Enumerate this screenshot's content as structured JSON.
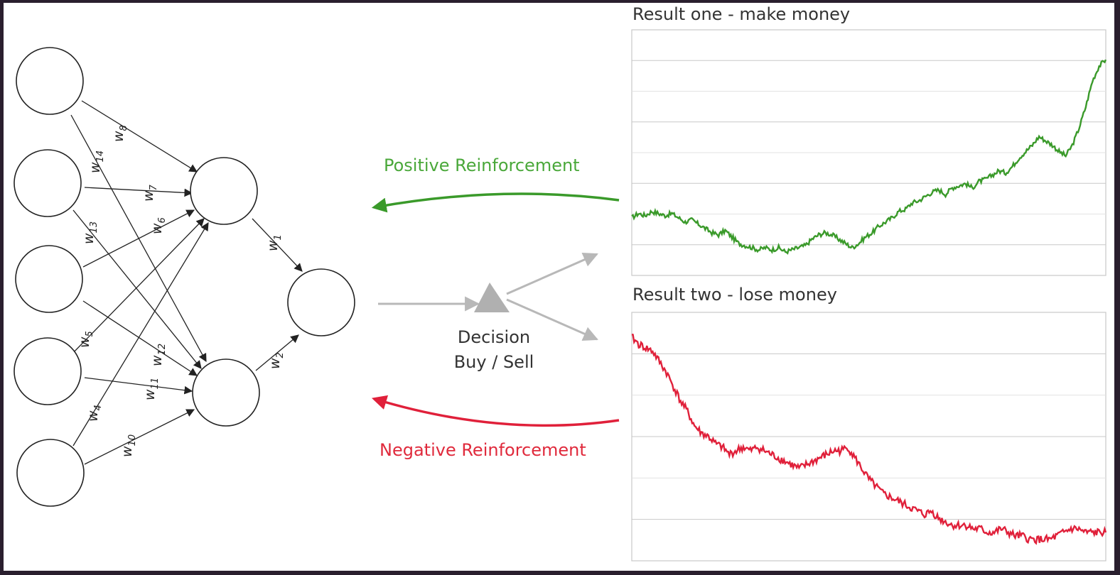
{
  "labels": {
    "decision_line1": "Decision",
    "decision_line2": "Buy / Sell",
    "positive": "Positive Reinforcement",
    "negative": "Negative Reinforcement"
  },
  "weights": [
    {
      "base": "w",
      "sub": "1"
    },
    {
      "base": "w",
      "sub": "2"
    },
    {
      "base": "w",
      "sub": "4"
    },
    {
      "base": "w",
      "sub": "5"
    },
    {
      "base": "w",
      "sub": "6"
    },
    {
      "base": "w",
      "sub": "7"
    },
    {
      "base": "w",
      "sub": "8"
    },
    {
      "base": "w",
      "sub": "10"
    },
    {
      "base": "w",
      "sub": "11"
    },
    {
      "base": "w",
      "sub": "12"
    },
    {
      "base": "w",
      "sub": "13"
    },
    {
      "base": "w",
      "sub": "14"
    }
  ],
  "colors": {
    "positive": "#3a9a2a",
    "negative": "#e0203a",
    "decision_gray": "#b8b8b8"
  },
  "chart_data": [
    {
      "type": "line",
      "title": "Result one - make money",
      "series": [
        {
          "values": [
            62,
            64,
            63,
            65,
            64,
            63,
            64,
            62,
            60,
            61,
            59,
            57,
            55,
            54,
            56,
            53,
            50,
            49,
            48,
            47,
            48,
            47,
            48,
            46,
            47,
            48,
            49,
            52,
            54,
            55,
            54,
            52,
            50,
            48,
            50,
            53,
            55,
            58,
            60,
            62,
            65,
            66,
            69,
            70,
            72,
            74,
            75,
            73,
            76,
            77,
            78,
            76,
            79,
            80,
            82,
            84,
            83,
            86,
            90,
            93,
            96,
            100,
            98,
            96,
            93,
            91,
            96,
            104,
            114,
            126,
            133,
            136
          ]
        }
      ],
      "ylim": [
        35,
        150
      ]
    },
    {
      "type": "line",
      "title": "Result two - lose money",
      "series": [
        {
          "values": [
            98,
            96,
            95,
            94,
            91,
            88,
            84,
            80,
            77,
            73,
            71,
            70,
            68,
            67,
            65,
            66,
            67,
            66,
            67,
            66,
            65,
            64,
            63,
            62,
            61,
            62,
            63,
            64,
            65,
            66,
            66,
            67,
            64,
            61,
            58,
            56,
            54,
            53,
            52,
            51,
            50,
            49,
            48,
            49,
            47,
            46,
            45,
            45,
            45,
            44,
            44,
            43,
            43,
            44,
            43,
            42,
            42,
            41,
            41,
            41,
            41,
            42,
            43,
            44,
            44,
            43,
            43,
            43,
            43
          ]
        }
      ],
      "ylim": [
        35,
        105
      ]
    }
  ]
}
